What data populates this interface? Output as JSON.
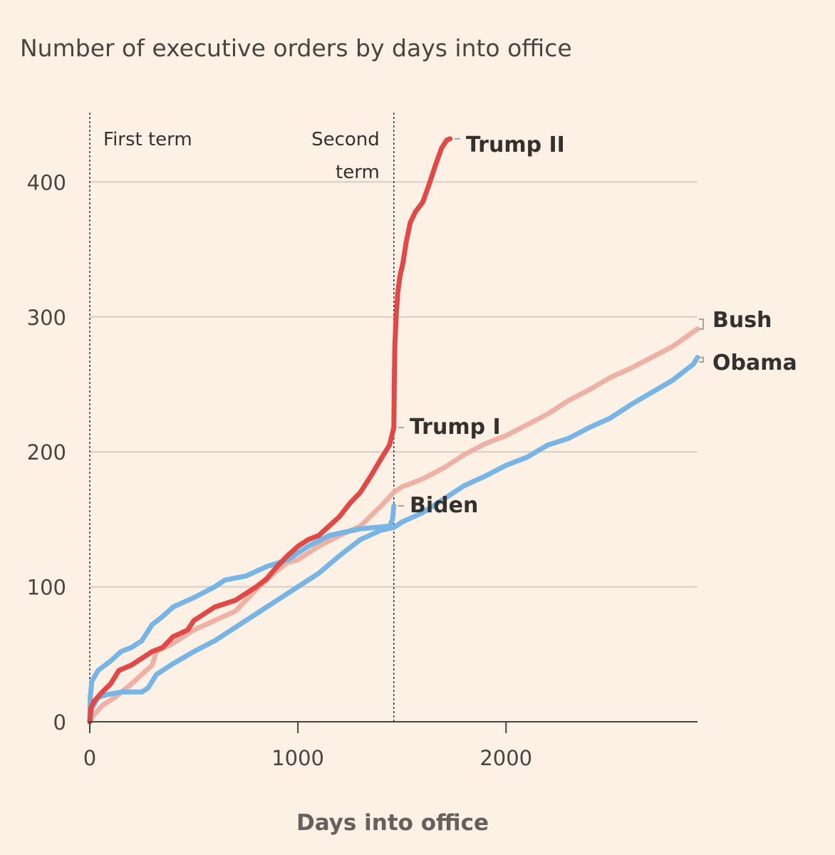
{
  "chart_data": {
    "type": "line",
    "title": "Number of executive orders by days into office",
    "xlabel": "Days into office",
    "ylabel": "",
    "xlim": [
      0,
      2920
    ],
    "ylim": [
      0,
      440
    ],
    "xticks": [
      0,
      1000,
      2000
    ],
    "yticks": [
      0,
      100,
      200,
      300,
      400
    ],
    "grid": true,
    "reference_lines": [
      {
        "x": 0,
        "label": "First term"
      },
      {
        "x": 1461,
        "label_lines": [
          "Second",
          "term"
        ]
      }
    ],
    "series": [
      {
        "name": "Bush",
        "color": "#eeb1a6",
        "points": [
          [
            0,
            0
          ],
          [
            20,
            5
          ],
          [
            60,
            12
          ],
          [
            120,
            18
          ],
          [
            200,
            28
          ],
          [
            300,
            42
          ],
          [
            320,
            52
          ],
          [
            400,
            58
          ],
          [
            500,
            68
          ],
          [
            600,
            75
          ],
          [
            700,
            82
          ],
          [
            800,
            98
          ],
          [
            850,
            105
          ],
          [
            900,
            112
          ],
          [
            950,
            118
          ],
          [
            1000,
            120
          ],
          [
            1100,
            130
          ],
          [
            1200,
            138
          ],
          [
            1300,
            145
          ],
          [
            1400,
            160
          ],
          [
            1461,
            170
          ],
          [
            1500,
            174
          ],
          [
            1600,
            180
          ],
          [
            1700,
            188
          ],
          [
            1800,
            198
          ],
          [
            1900,
            206
          ],
          [
            2000,
            212
          ],
          [
            2100,
            220
          ],
          [
            2200,
            228
          ],
          [
            2300,
            238
          ],
          [
            2400,
            246
          ],
          [
            2500,
            255
          ],
          [
            2600,
            262
          ],
          [
            2700,
            270
          ],
          [
            2800,
            278
          ],
          [
            2900,
            289
          ],
          [
            2920,
            291
          ]
        ]
      },
      {
        "name": "Obama",
        "color": "#77b5e6",
        "points": [
          [
            0,
            0
          ],
          [
            10,
            10
          ],
          [
            40,
            18
          ],
          [
            80,
            20
          ],
          [
            150,
            22
          ],
          [
            250,
            22
          ],
          [
            280,
            25
          ],
          [
            320,
            35
          ],
          [
            400,
            43
          ],
          [
            500,
            52
          ],
          [
            600,
            60
          ],
          [
            700,
            70
          ],
          [
            800,
            80
          ],
          [
            900,
            90
          ],
          [
            1000,
            100
          ],
          [
            1100,
            110
          ],
          [
            1200,
            123
          ],
          [
            1300,
            135
          ],
          [
            1400,
            142
          ],
          [
            1461,
            144
          ],
          [
            1500,
            148
          ],
          [
            1600,
            155
          ],
          [
            1700,
            165
          ],
          [
            1800,
            175
          ],
          [
            1900,
            182
          ],
          [
            2000,
            190
          ],
          [
            2100,
            196
          ],
          [
            2200,
            205
          ],
          [
            2300,
            210
          ],
          [
            2400,
            218
          ],
          [
            2500,
            225
          ],
          [
            2600,
            235
          ],
          [
            2700,
            244
          ],
          [
            2800,
            253
          ],
          [
            2900,
            265
          ],
          [
            2920,
            270
          ]
        ]
      },
      {
        "name": "Biden",
        "color": "#77b5e6",
        "points": [
          [
            0,
            0
          ],
          [
            2,
            18
          ],
          [
            10,
            30
          ],
          [
            40,
            38
          ],
          [
            100,
            45
          ],
          [
            150,
            52
          ],
          [
            200,
            55
          ],
          [
            250,
            60
          ],
          [
            300,
            72
          ],
          [
            350,
            78
          ],
          [
            400,
            85
          ],
          [
            500,
            92
          ],
          [
            600,
            100
          ],
          [
            650,
            105
          ],
          [
            750,
            108
          ],
          [
            850,
            115
          ],
          [
            950,
            120
          ],
          [
            1050,
            130
          ],
          [
            1150,
            138
          ],
          [
            1300,
            143
          ],
          [
            1440,
            145
          ],
          [
            1455,
            150
          ],
          [
            1461,
            160
          ]
        ]
      },
      {
        "name": "Trump I",
        "color": "#e04947",
        "points": [
          [
            0,
            0
          ],
          [
            5,
            10
          ],
          [
            20,
            15
          ],
          [
            60,
            22
          ],
          [
            100,
            28
          ],
          [
            140,
            38
          ],
          [
            200,
            42
          ],
          [
            260,
            48
          ],
          [
            300,
            52
          ],
          [
            350,
            55
          ],
          [
            400,
            63
          ],
          [
            470,
            68
          ],
          [
            500,
            75
          ],
          [
            550,
            80
          ],
          [
            600,
            85
          ],
          [
            700,
            90
          ],
          [
            800,
            100
          ],
          [
            850,
            106
          ],
          [
            900,
            115
          ],
          [
            950,
            123
          ],
          [
            1000,
            130
          ],
          [
            1050,
            135
          ],
          [
            1100,
            138
          ],
          [
            1150,
            145
          ],
          [
            1200,
            152
          ],
          [
            1250,
            162
          ],
          [
            1300,
            170
          ],
          [
            1350,
            182
          ],
          [
            1400,
            195
          ],
          [
            1440,
            205
          ],
          [
            1461,
            218
          ]
        ]
      },
      {
        "name": "Trump II",
        "color": "#e04947",
        "points": [
          [
            1461,
            218
          ],
          [
            1463,
            250
          ],
          [
            1466,
            280
          ],
          [
            1472,
            300
          ],
          [
            1480,
            318
          ],
          [
            1490,
            330
          ],
          [
            1505,
            340
          ],
          [
            1520,
            355
          ],
          [
            1540,
            370
          ],
          [
            1565,
            378
          ],
          [
            1600,
            385
          ],
          [
            1630,
            398
          ],
          [
            1660,
            412
          ],
          [
            1690,
            425
          ],
          [
            1715,
            431
          ],
          [
            1731,
            432
          ]
        ]
      }
    ]
  }
}
